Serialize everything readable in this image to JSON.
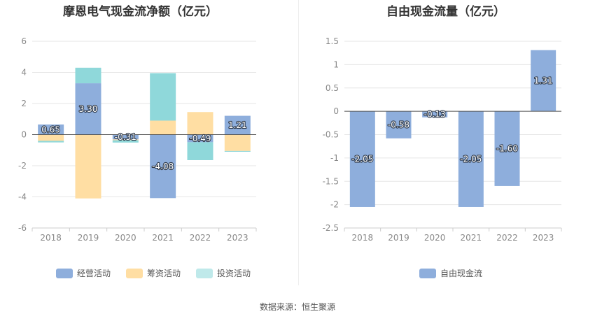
{
  "source_note": "数据来源：恒生聚源",
  "chart_data": [
    {
      "type": "bar",
      "stacked": true,
      "title": "摩恩电气现金流净额（亿元）",
      "categories": [
        "2018",
        "2019",
        "2020",
        "2021",
        "2022",
        "2023"
      ],
      "ylim": [
        -6,
        6
      ],
      "yticks": [
        -6,
        -4,
        -2,
        0,
        2,
        4,
        6
      ],
      "grid": true,
      "legend_position": "bottom",
      "series": [
        {
          "name": "经营活动",
          "color": "#8eaedc",
          "values": [
            0.65,
            3.3,
            -0.31,
            -4.08,
            -0.49,
            1.21
          ]
        },
        {
          "name": "筹资活动",
          "color": "#ffdea3",
          "values": [
            -0.4,
            -4.1,
            -0.05,
            0.9,
            1.45,
            -1.05
          ]
        },
        {
          "name": "投资活动",
          "color": "#8fd8da",
          "values": [
            -0.1,
            1.0,
            -0.15,
            3.05,
            -1.15,
            -0.05
          ]
        }
      ],
      "data_labels": [
        "0.65",
        "3.30",
        "-0.31",
        "-4.08",
        "-0.49",
        "1.21"
      ]
    },
    {
      "type": "bar",
      "title": "自由现金流量（亿元）",
      "categories": [
        "2018",
        "2019",
        "2020",
        "2021",
        "2022",
        "2023"
      ],
      "ylim": [
        -2.5,
        1.5
      ],
      "yticks": [
        -2.5,
        -2,
        -1.5,
        -1,
        -0.5,
        0,
        0.5,
        1,
        1.5
      ],
      "grid": true,
      "legend_position": "bottom",
      "series": [
        {
          "name": "自由现金流",
          "color": "#8eaedc",
          "values": [
            -2.05,
            -0.58,
            -0.13,
            -2.05,
            -1.6,
            1.31
          ]
        }
      ],
      "data_labels": [
        "-2.05",
        "-0.58",
        "-0.13",
        "-2.05",
        "-1.60",
        "1.31"
      ]
    }
  ]
}
